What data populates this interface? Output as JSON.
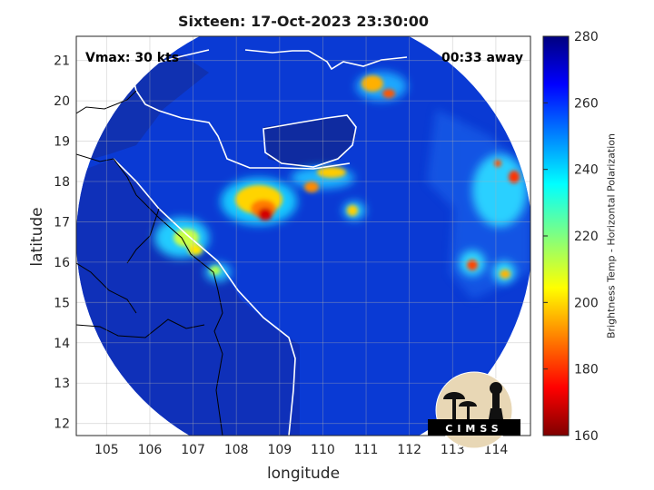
{
  "title": "Sixteen: 17-Oct-2023 23:30:00",
  "vmax_label": "Vmax: 30 kts",
  "time_away_label": "00:33 away",
  "xlabel": "longitude",
  "ylabel": "latitude",
  "x_ticks": [
    "105",
    "106",
    "107",
    "108",
    "109",
    "110",
    "111",
    "112",
    "113",
    "114"
  ],
  "y_ticks": [
    "21",
    "20",
    "19",
    "18",
    "17",
    "16",
    "15",
    "14",
    "13",
    "12"
  ],
  "colorbar": {
    "label": "Brightness Temp - Horizontal Polarization",
    "ticks": [
      "280",
      "260",
      "240",
      "220",
      "200",
      "180",
      "160"
    ],
    "range": [
      160,
      280
    ]
  },
  "logo_text": "CIMSS",
  "colors": {
    "background_disk": "#0a3ad4",
    "coast": "#ffffff",
    "land_dark": "#102a9c"
  },
  "chart_data": {
    "type": "heatmap",
    "title": "Sixteen: 17-Oct-2023 23:30:00",
    "xlabel": "longitude",
    "ylabel": "latitude",
    "xlim": [
      104.3,
      114.8
    ],
    "ylim": [
      11.7,
      21.6
    ],
    "colorbar_label": "Brightness Temp - Horizontal Polarization",
    "clim": [
      160,
      280
    ],
    "colormap": "jet_reversed",
    "grid": true,
    "annotations": [
      "Vmax: 30 kts",
      "00:33 away"
    ],
    "features": [
      {
        "name": "main convection",
        "lon": 108.9,
        "lat": 17.5,
        "min_tb": 170
      },
      {
        "name": "convection band",
        "lon": 110.1,
        "lat": 18.1,
        "min_tb": 190
      },
      {
        "name": "convection band",
        "lon": 111.7,
        "lat": 20.3,
        "min_tb": 190
      },
      {
        "name": "inland cells",
        "lon": 106.6,
        "lat": 16.3,
        "min_tb": 215
      },
      {
        "name": "east cell",
        "lon": 113.4,
        "lat": 16.0,
        "min_tb": 190
      },
      {
        "name": "east cell",
        "lon": 114.3,
        "lat": 15.7,
        "min_tb": 200
      },
      {
        "name": "east band",
        "lon": 114.4,
        "lat": 18.2,
        "min_tb": 185
      }
    ]
  }
}
